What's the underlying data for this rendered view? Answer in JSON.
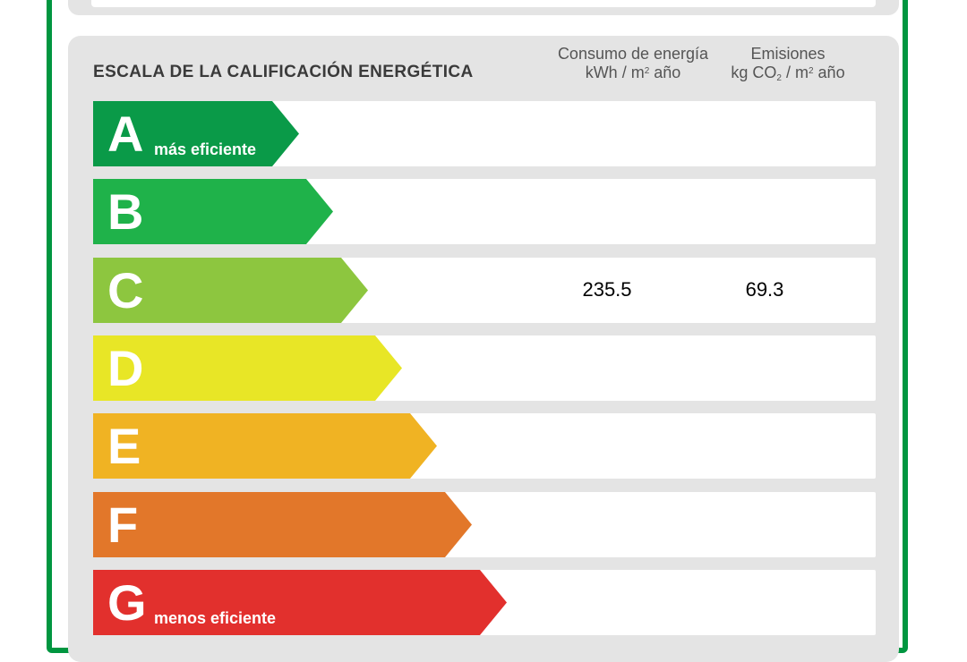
{
  "header": {
    "title": "ESCALA DE LA CALIFICACIÓN ENERGÉTICA",
    "energy_col": {
      "line1": "Consumo de energía",
      "line2_pre": "kWh  / m",
      "line2_sup": "2",
      "line2_post": " año"
    },
    "emissions_col": {
      "line1": "Emisiones",
      "line2_pre": "kg CO",
      "line2_sub": "2",
      "line2_mid": " / m",
      "line2_sup": "2",
      "line2_post": " año"
    }
  },
  "ratings": [
    {
      "letter": "A",
      "caption": "más eficiente",
      "color": "#0a9a48",
      "energy": "",
      "emissions": ""
    },
    {
      "letter": "B",
      "caption": "",
      "color": "#1fb24a",
      "energy": "",
      "emissions": ""
    },
    {
      "letter": "C",
      "caption": "",
      "color": "#8dc63f",
      "energy": "235.5",
      "emissions": "69.3"
    },
    {
      "letter": "D",
      "caption": "",
      "color": "#e8e626",
      "energy": "",
      "emissions": ""
    },
    {
      "letter": "E",
      "caption": "",
      "color": "#f0b323",
      "energy": "",
      "emissions": ""
    },
    {
      "letter": "F",
      "caption": "",
      "color": "#e2772a",
      "energy": "",
      "emissions": ""
    },
    {
      "letter": "G",
      "caption": "menos eficiente",
      "color": "#e2302d",
      "energy": "",
      "emissions": ""
    }
  ],
  "colors": {
    "frame": "#009640",
    "panel": "#e4e4e4"
  }
}
